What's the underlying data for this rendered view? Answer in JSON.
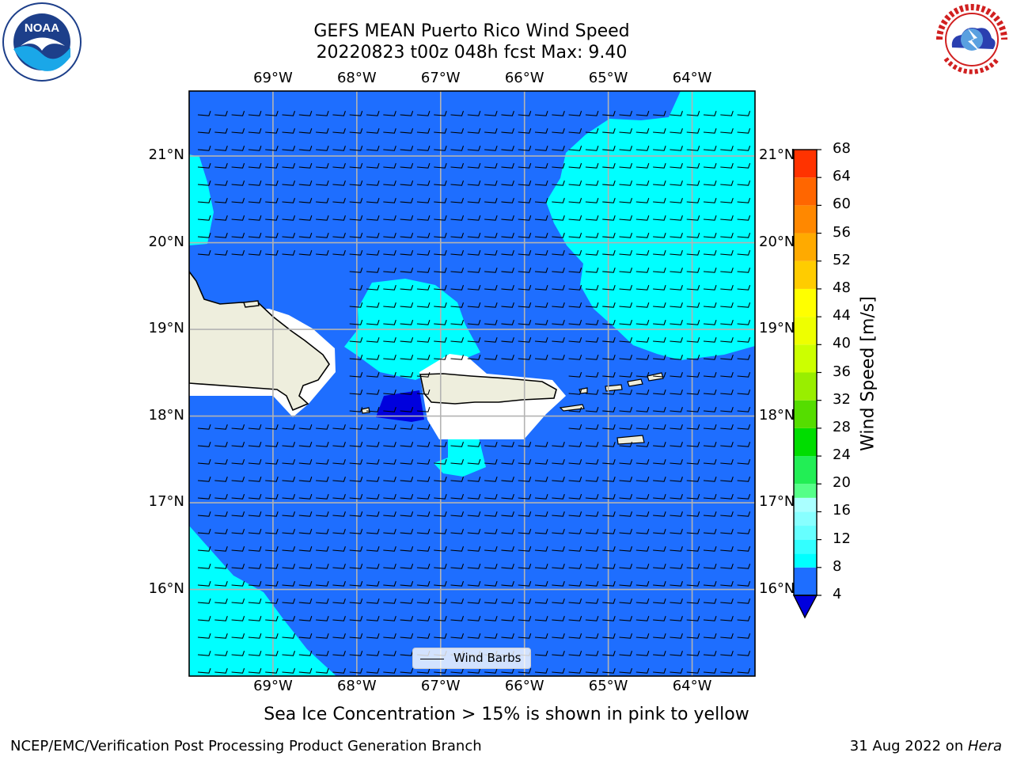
{
  "title": {
    "line1": "GEFS MEAN Puerto Rico Wind Speed",
    "line2": "20220823 t00z 048h fcst   Max: 9.40"
  },
  "map": {
    "lon_ticks": [
      "69°W",
      "68°W",
      "67°W",
      "66°W",
      "65°W",
      "64°W"
    ],
    "lat_ticks": [
      "21°N",
      "20°N",
      "19°N",
      "18°N",
      "17°N",
      "16°N"
    ],
    "lon_range": [
      -70.0,
      -63.25
    ],
    "lat_range": [
      15.0,
      21.75
    ],
    "gridlines": true,
    "land_color": "#eeeedd",
    "dominant_fill": "#1e6eff",
    "wind_barbs": {
      "u_ms": -6.5,
      "v_ms": 0.0,
      "description": "easterly trade winds"
    }
  },
  "legend": {
    "label": "Wind Barbs"
  },
  "colorbar": {
    "label": "Wind Speed [m/s]",
    "ticks": [
      "68",
      "64",
      "60",
      "56",
      "52",
      "48",
      "44",
      "40",
      "36",
      "32",
      "28",
      "24",
      "20",
      "16",
      "12",
      "8",
      "4"
    ],
    "levels": [
      4,
      8,
      10,
      12,
      14,
      16,
      18,
      20,
      24,
      28,
      32,
      36,
      40,
      44,
      48,
      52,
      56,
      60,
      64,
      68
    ],
    "colors": [
      "#1e6eff",
      "#00ffff",
      "#33ffff",
      "#66ffff",
      "#88ffff",
      "#aaffff",
      "#55ff88",
      "#22ee55",
      "#00dd00",
      "#55dd00",
      "#99ee00",
      "#ccff00",
      "#eeff00",
      "#ffff00",
      "#ffcc00",
      "#ffaa00",
      "#ff8800",
      "#ff6600",
      "#ff3300",
      "#ff0000"
    ],
    "under_color": "#0000dd"
  },
  "subtitle": "Sea Ice Concentration > 15% is shown in pink to yellow",
  "footer": {
    "left": "NCEP/EMC/Verification Post Processing Product Generation Branch",
    "date": "31 Aug 2022 on ",
    "host": "Hera"
  }
}
